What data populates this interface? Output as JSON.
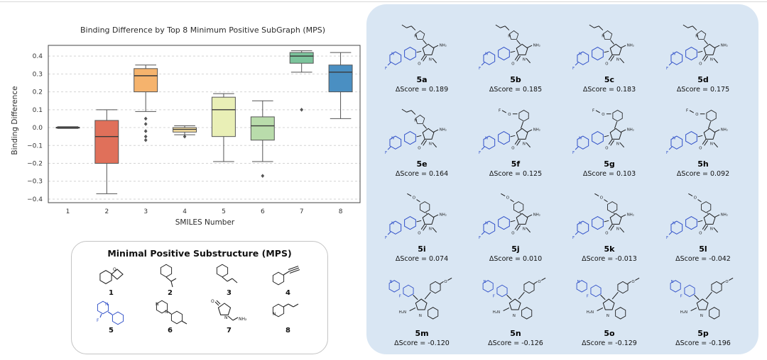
{
  "colors": {
    "right_panel_bg": "#d9e6f3",
    "molecule_highlight_blue": "#3050c8",
    "mps_box_border": "#c4c4c4"
  },
  "chart_data": {
    "type": "boxplot",
    "title": "Binding Difference by Top 8 Minimum Positive SubGraph (MPS)",
    "xlabel": "SMILES Number",
    "ylabel": "Binding Difference",
    "ylim": [
      -0.42,
      0.46
    ],
    "yticks": [
      -0.4,
      -0.3,
      -0.2,
      -0.1,
      0,
      0.1,
      0.2,
      0.3,
      0.4
    ],
    "grid": "horizontal-dashed",
    "categories": [
      "1",
      "2",
      "3",
      "4",
      "5",
      "6",
      "7",
      "8"
    ],
    "series": [
      {
        "label": "1",
        "whislo": -0.005,
        "q1": -0.002,
        "med": 0.0,
        "q3": 0.002,
        "whishi": 0.005,
        "fliers": [],
        "color": "#d65f5f"
      },
      {
        "label": "2",
        "whislo": -0.37,
        "q1": -0.2,
        "med": -0.05,
        "q3": 0.04,
        "whishi": 0.1,
        "fliers": [],
        "color": "#e0705a"
      },
      {
        "label": "3",
        "whislo": 0.09,
        "q1": 0.2,
        "med": 0.29,
        "q3": 0.33,
        "whishi": 0.35,
        "fliers": [
          0.05,
          0.02,
          -0.02,
          -0.05,
          -0.07
        ],
        "color": "#f5b36d"
      },
      {
        "label": "4",
        "whislo": -0.04,
        "q1": -0.025,
        "med": -0.01,
        "q3": 0.0,
        "whishi": 0.01,
        "fliers": [
          -0.05
        ],
        "color": "#fbe3a3"
      },
      {
        "label": "5",
        "whislo": -0.19,
        "q1": -0.05,
        "med": 0.1,
        "q3": 0.17,
        "whishi": 0.19,
        "fliers": [],
        "color": "#e9efb6"
      },
      {
        "label": "6",
        "whislo": -0.19,
        "q1": -0.07,
        "med": 0.01,
        "q3": 0.06,
        "whishi": 0.15,
        "fliers": [
          -0.27
        ],
        "color": "#b9dcab"
      },
      {
        "label": "7",
        "whislo": 0.31,
        "q1": 0.36,
        "med": 0.4,
        "q3": 0.42,
        "whishi": 0.43,
        "fliers": [
          0.1
        ],
        "color": "#7cc49c"
      },
      {
        "label": "8",
        "whislo": 0.05,
        "q1": 0.2,
        "med": 0.31,
        "q3": 0.35,
        "whishi": 0.42,
        "fliers": [],
        "color": "#4a8fc2"
      }
    ]
  },
  "mps": {
    "title": "Minimal Positive Substructure (MPS)",
    "items": [
      {
        "label": "1",
        "icon": "#mps1"
      },
      {
        "label": "2",
        "icon": "#mps2"
      },
      {
        "label": "3",
        "icon": "#mps3"
      },
      {
        "label": "4",
        "icon": "#mps4"
      },
      {
        "label": "5",
        "icon": "#mps5"
      },
      {
        "label": "6",
        "icon": "#mps6"
      },
      {
        "label": "7",
        "icon": "#mps7"
      },
      {
        "label": "8",
        "icon": "#mps8"
      }
    ]
  },
  "molecules": {
    "items": [
      {
        "label": "5a",
        "score": "ΔScore = 0.189",
        "icon": "#molA"
      },
      {
        "label": "5b",
        "score": "ΔScore = 0.185",
        "icon": "#molA"
      },
      {
        "label": "5c",
        "score": "ΔScore = 0.183",
        "icon": "#molA"
      },
      {
        "label": "5d",
        "score": "ΔScore = 0.175",
        "icon": "#molA"
      },
      {
        "label": "5e",
        "score": "ΔScore = 0.164",
        "icon": "#molA"
      },
      {
        "label": "5f",
        "score": "ΔScore = 0.125",
        "icon": "#molB"
      },
      {
        "label": "5g",
        "score": "ΔScore = 0.103",
        "icon": "#molB"
      },
      {
        "label": "5h",
        "score": "ΔScore = 0.092",
        "icon": "#molB"
      },
      {
        "label": "5i",
        "score": "ΔScore = 0.074",
        "icon": "#molC"
      },
      {
        "label": "5j",
        "score": "ΔScore = 0.010",
        "icon": "#molC"
      },
      {
        "label": "5k",
        "score": "ΔScore = -0.013",
        "icon": "#molC"
      },
      {
        "label": "5l",
        "score": "ΔScore = -0.042",
        "icon": "#molC"
      },
      {
        "label": "5m",
        "score": "ΔScore = -0.120",
        "icon": "#molD"
      },
      {
        "label": "5n",
        "score": "ΔScore = -0.126",
        "icon": "#molD"
      },
      {
        "label": "5o",
        "score": "ΔScore = -0.129",
        "icon": "#molD"
      },
      {
        "label": "5p",
        "score": "ΔScore = -0.196",
        "icon": "#molD"
      }
    ]
  }
}
